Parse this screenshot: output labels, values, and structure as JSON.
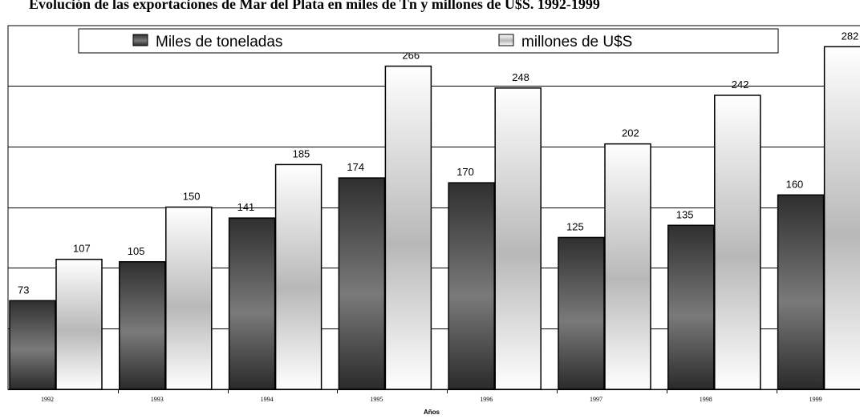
{
  "chart_data": {
    "type": "bar",
    "title": "Evolución de las exportaciones de Mar del Plata en miles de Tn y millones de U$S. 1992-1999",
    "xlabel": "Años",
    "ylabel": "",
    "categories": [
      "1992",
      "1993",
      "1994",
      "1995",
      "1996",
      "1997",
      "1998",
      "1999"
    ],
    "series": [
      {
        "name": "Miles de toneladas",
        "values": [
          73,
          105,
          141,
          174,
          170,
          125,
          135,
          160
        ],
        "color": "#555555",
        "style": "dark-gradient"
      },
      {
        "name": "millones de U$S",
        "values": [
          107,
          150,
          185,
          266,
          248,
          202,
          242,
          282
        ],
        "color": "#e6e6e6",
        "style": "light-gradient"
      }
    ],
    "ylim": [
      0,
      300
    ],
    "grid": true,
    "legend_position": "top"
  }
}
